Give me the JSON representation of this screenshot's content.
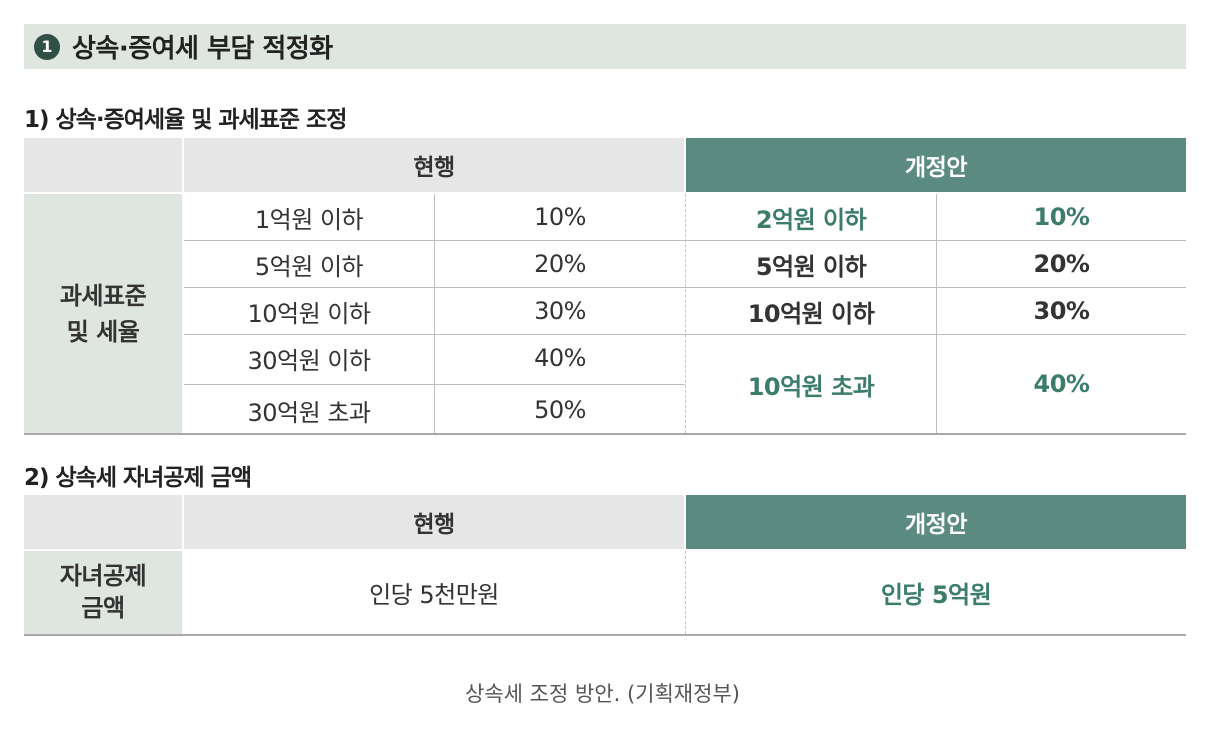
{
  "banner": {
    "number": "1",
    "title": "상속·증여세 부담 적정화"
  },
  "section1": {
    "title": "1) 상속·증여세율 및 과세표준 조정",
    "header_current": "현행",
    "header_new": "개정안",
    "row_label": [
      "과세표준",
      "및 세율"
    ],
    "current_rows": [
      {
        "bracket": "1억원 이하",
        "rate": "10%"
      },
      {
        "bracket": "5억원 이하",
        "rate": "20%"
      },
      {
        "bracket": "10억원 이하",
        "rate": "30%"
      },
      {
        "bracket": "30억원 이하",
        "rate": "40%"
      },
      {
        "bracket": "30억원 초과",
        "rate": "50%"
      }
    ],
    "new_rows": [
      {
        "bracket": "2억원 이하",
        "rate": "10%"
      },
      {
        "bracket": "5억원 이하",
        "rate": "20%"
      },
      {
        "bracket": "10억원 이하",
        "rate": "30%"
      },
      {
        "bracket": "10억원 초과",
        "rate": "40%"
      }
    ]
  },
  "section2": {
    "title": "2) 상속세 자녀공제 금액",
    "header_current": "현행",
    "header_new": "개정안",
    "row_label": [
      "자녀공제",
      "금액"
    ],
    "current_value": "인당 5천만원",
    "new_value": "인당 5억원"
  },
  "caption": "상속세 조정 방안. (기획재정부)",
  "colors": {
    "header_new_bg": "#5b8a80",
    "highlight_text": "#3c7c6b",
    "rowhead_bg": "#dfe5df",
    "header_bg": "#e6e6e6"
  }
}
